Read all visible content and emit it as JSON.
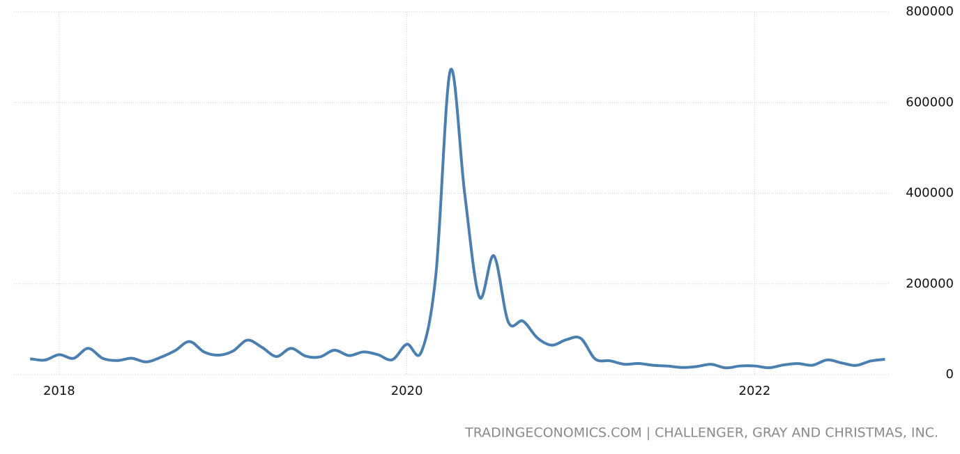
{
  "chart_data": {
    "type": "line",
    "source": "TRADINGECONOMICS.COM | CHALLENGER, GRAY AND CHRISTMAS, INC.",
    "x": [
      2017.833,
      2017.917,
      2018,
      2018.083,
      2018.167,
      2018.25,
      2018.333,
      2018.417,
      2018.5,
      2018.583,
      2018.667,
      2018.75,
      2018.833,
      2018.917,
      2019,
      2019.083,
      2019.167,
      2019.25,
      2019.333,
      2019.417,
      2019.5,
      2019.583,
      2019.667,
      2019.75,
      2019.833,
      2019.917,
      2020,
      2020.083,
      2020.167,
      2020.25,
      2020.333,
      2020.417,
      2020.5,
      2020.583,
      2020.667,
      2020.75,
      2020.833,
      2020.917,
      2021,
      2021.083,
      2021.167,
      2021.25,
      2021.333,
      2021.417,
      2021.5,
      2021.583,
      2021.667,
      2021.75,
      2021.833,
      2021.917,
      2022,
      2022.083,
      2022.167,
      2022.25,
      2022.333,
      2022.417,
      2022.5,
      2022.583,
      2022.667,
      2022.75
    ],
    "series": [
      {
        "color": "#4a7fb0",
        "values": [
          35000,
          32000,
          44000,
          36000,
          58000,
          36000,
          31000,
          36000,
          28000,
          38000,
          53000,
          73000,
          50000,
          43000,
          52000,
          76000,
          60000,
          40000,
          58000,
          41000,
          39000,
          54000,
          42000,
          50000,
          44000,
          33000,
          67000,
          50000,
          222000,
          671000,
          397000,
          171000,
          262000,
          116000,
          118000,
          81000,
          65000,
          77000,
          80000,
          34500,
          30600,
          22900,
          24600,
          20500,
          18900,
          15700,
          17900,
          22800,
          14900,
          19100,
          19100,
          15200,
          21400,
          24300,
          20700,
          32500,
          25800,
          20300,
          30000,
          33800
        ]
      }
    ],
    "xlim": [
      2017.74,
      2022.78
    ],
    "xticks": [
      2018,
      2020,
      2022
    ],
    "ylim": [
      0,
      800000
    ],
    "yticks": [
      0,
      200000,
      400000,
      600000,
      800000
    ],
    "grid": true
  }
}
